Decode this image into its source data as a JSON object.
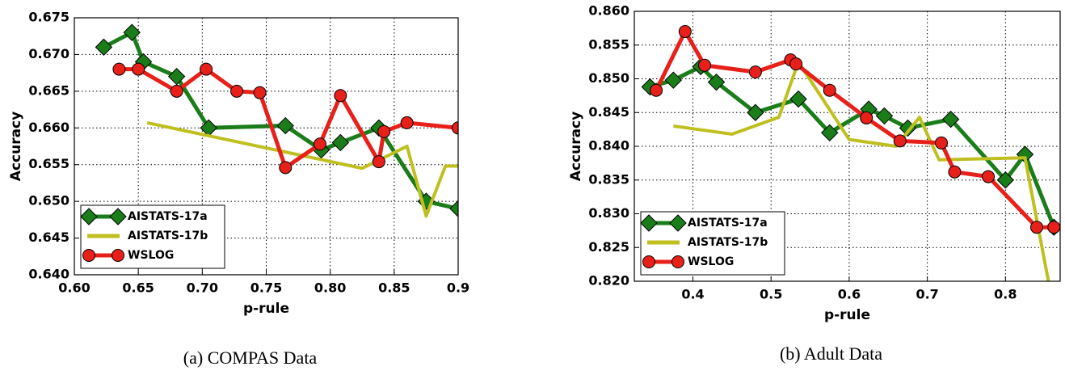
{
  "chart_data": [
    {
      "type": "line",
      "xlabel": "p-rule",
      "ylabel": "Accuracy",
      "caption": "(a) COMPAS Data",
      "xlim": [
        0.6,
        0.9
      ],
      "ylim": [
        0.64,
        0.675
      ],
      "xticks": [
        {
          "value": 0.6,
          "label": "0.60"
        },
        0.65,
        {
          "value": 0.7,
          "label": "0.70"
        },
        0.75,
        {
          "value": 0.8,
          "label": "0.80"
        },
        0.85,
        0.9
      ],
      "yticks": [
        {
          "value": 0.64,
          "label": "0.640"
        },
        0.645,
        {
          "value": 0.65,
          "label": "0.650"
        },
        0.655,
        {
          "value": 0.66,
          "label": "0.660"
        },
        0.665,
        {
          "value": 0.67,
          "label": "0.670"
        },
        0.675
      ],
      "grid": true,
      "legend": "lower left",
      "series": [
        {
          "name": "AISTATS-17a",
          "color": "#1a7d1a",
          "marker": "diamond",
          "x": [
            0.623,
            0.645,
            0.654,
            0.68,
            0.705,
            0.765,
            0.793,
            0.808,
            0.838,
            0.875,
            0.9
          ],
          "values": [
            0.671,
            0.673,
            0.669,
            0.667,
            0.66,
            0.6603,
            0.657,
            0.658,
            0.66,
            0.65,
            0.649
          ]
        },
        {
          "name": "AISTATS-17b",
          "color": "#bfbf20",
          "marker": "none",
          "x": [
            0.657,
            0.825,
            0.86,
            0.875,
            0.89,
            0.9
          ],
          "values": [
            0.6607,
            0.6545,
            0.6575,
            0.648,
            0.6548,
            0.6548
          ]
        },
        {
          "name": "WSLOG",
          "color": "#e8201a",
          "marker": "circle",
          "x": [
            0.635,
            0.65,
            0.68,
            0.703,
            0.727,
            0.745,
            0.765,
            0.792,
            0.808,
            0.838,
            0.842,
            0.86,
            0.9
          ],
          "values": [
            0.668,
            0.668,
            0.665,
            0.668,
            0.665,
            0.6648,
            0.6546,
            0.6578,
            0.6644,
            0.6554,
            0.6595,
            0.6607,
            0.66
          ]
        }
      ]
    },
    {
      "type": "line",
      "xlabel": "p-rule",
      "ylabel": "Accuracy",
      "caption": "(b) Adult Data",
      "xlim": [
        0.325,
        0.87
      ],
      "ylim": [
        0.82,
        0.86
      ],
      "xticks": [
        0.4,
        0.5,
        0.6,
        0.7,
        0.8
      ],
      "yticks": [
        {
          "value": 0.82,
          "label": "0.820"
        },
        0.825,
        {
          "value": 0.83,
          "label": "0.830"
        },
        0.835,
        {
          "value": 0.84,
          "label": "0.840"
        },
        0.845,
        {
          "value": 0.85,
          "label": "0.850"
        },
        0.855,
        {
          "value": 0.86,
          "label": "0.860"
        }
      ],
      "grid": true,
      "legend": "lower left",
      "series": [
        {
          "name": "AISTATS-17a",
          "color": "#1a7d1a",
          "marker": "diamond",
          "x": [
            0.345,
            0.375,
            0.41,
            0.43,
            0.48,
            0.535,
            0.575,
            0.625,
            0.645,
            0.675,
            0.73,
            0.8,
            0.825,
            0.862
          ],
          "values": [
            0.8488,
            0.8498,
            0.8518,
            0.8495,
            0.845,
            0.847,
            0.842,
            0.8455,
            0.8445,
            0.8427,
            0.844,
            0.835,
            0.8388,
            0.828
          ]
        },
        {
          "name": "AISTATS-17b",
          "color": "#bfbf20",
          "marker": "none",
          "x": [
            0.375,
            0.45,
            0.51,
            0.535,
            0.6,
            0.66,
            0.69,
            0.715,
            0.825,
            0.855
          ],
          "values": [
            0.843,
            0.8418,
            0.8443,
            0.8525,
            0.841,
            0.84,
            0.8443,
            0.838,
            0.8383,
            0.82
          ]
        },
        {
          "name": "WSLOG",
          "color": "#e8201a",
          "marker": "circle",
          "x": [
            0.353,
            0.39,
            0.415,
            0.48,
            0.525,
            0.532,
            0.575,
            0.622,
            0.665,
            0.718,
            0.735,
            0.778,
            0.84,
            0.862
          ],
          "values": [
            0.8483,
            0.857,
            0.852,
            0.851,
            0.8528,
            0.8522,
            0.8483,
            0.8442,
            0.8408,
            0.8405,
            0.8362,
            0.8355,
            0.828,
            0.828
          ]
        }
      ]
    }
  ]
}
